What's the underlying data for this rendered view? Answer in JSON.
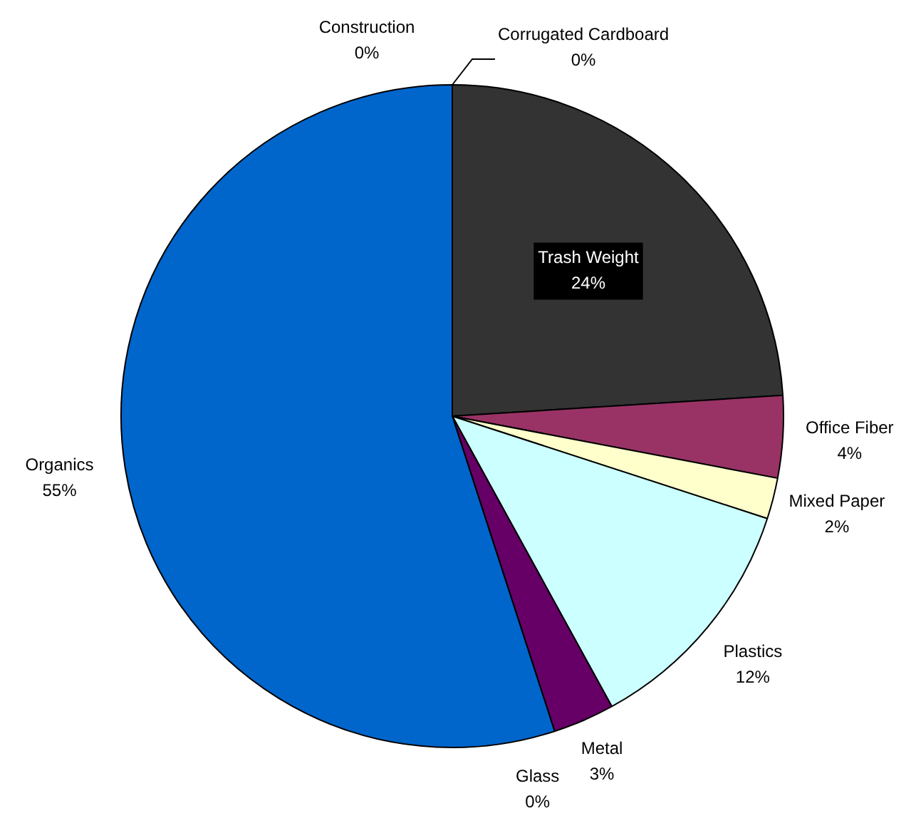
{
  "chart_data": {
    "type": "pie",
    "categories": [
      "Corrugated Cardboard",
      "Trash Weight",
      "Office Fiber",
      "Mixed Paper",
      "Plastics",
      "Metal",
      "Glass",
      "Organics",
      "Construction"
    ],
    "values": [
      0,
      24,
      4,
      2,
      12,
      3,
      0,
      55,
      0
    ],
    "colors": [
      "#808080",
      "#333333",
      "#993366",
      "#ffffcc",
      "#ccffff",
      "#660066",
      "#808080",
      "#0066cc",
      "#808080"
    ],
    "value_labels": [
      "0%",
      "24%",
      "4%",
      "2%",
      "12%",
      "3%",
      "0%",
      "55%",
      "0%"
    ],
    "legend": false
  }
}
